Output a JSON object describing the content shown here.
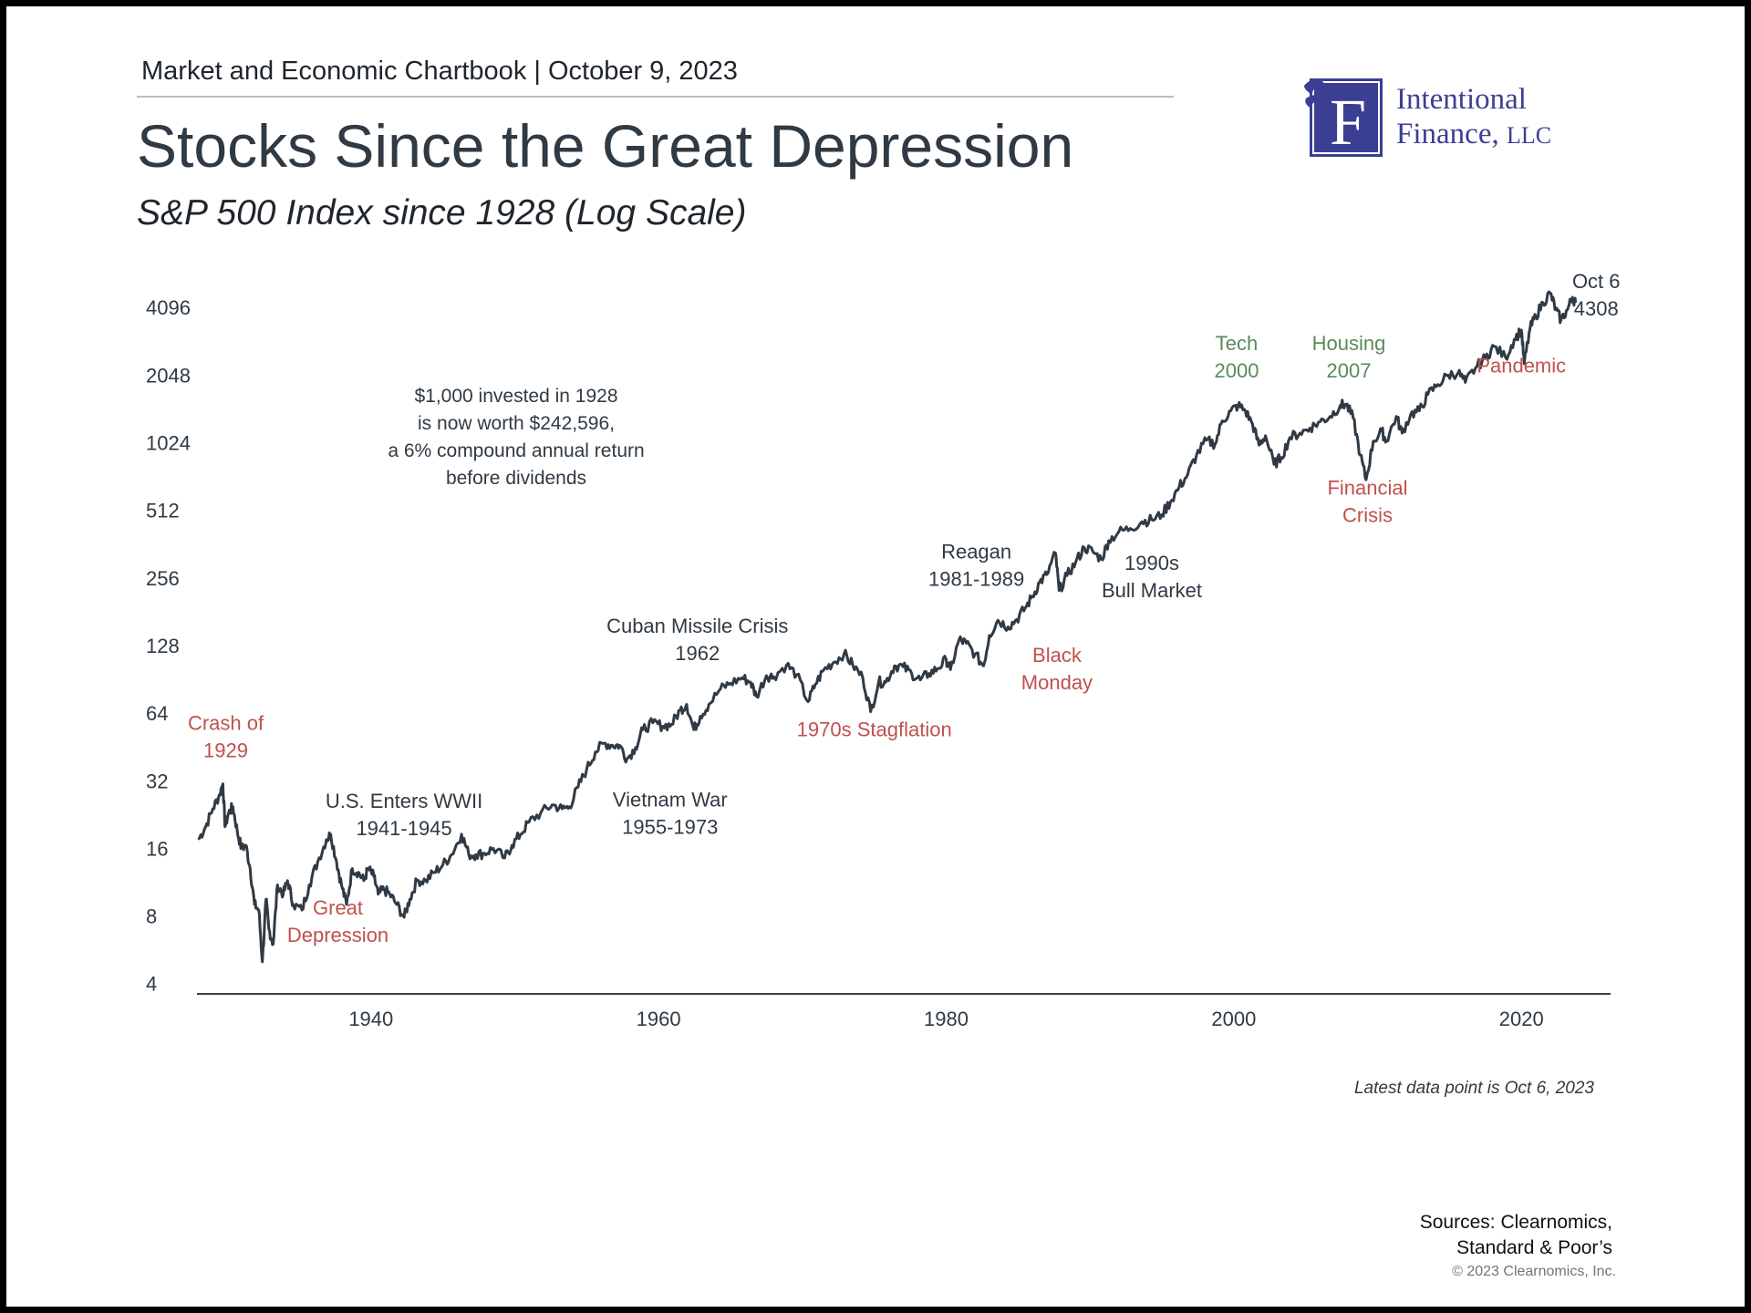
{
  "header": {
    "chartbook": "Market and Economic Chartbook | October 9, 2023",
    "title": "Stocks Since the Great Depression",
    "subtitle": "S&P 500 Index since 1928 (Log Scale)"
  },
  "logo": {
    "letter": "F",
    "line1": "Intentional",
    "line2": "Finance,",
    "line2_suffix": "LLC",
    "color": "#3b3f94"
  },
  "colors": {
    "line": "#2f3a44",
    "crisis_label": "#c0504d",
    "boom_label": "#5a8a5a",
    "event_label": "#2f3a44"
  },
  "chart_data": {
    "type": "line",
    "title": "Stocks Since the Great Depression",
    "subtitle": "S&P 500 Index since 1928 (Log Scale)",
    "xlabel": "",
    "ylabel": "",
    "y_scale": "log2",
    "ylim": [
      3.6,
      5800
    ],
    "xlim": [
      1927.9,
      2026.2
    ],
    "y_ticks": [
      4,
      8,
      16,
      32,
      64,
      128,
      256,
      512,
      1024,
      2048,
      4096
    ],
    "x_ticks": [
      1940,
      1960,
      1980,
      2000,
      2020
    ],
    "grid": false,
    "legend": "none",
    "series": [
      {
        "values": [
          [
            1928.0,
            17.5
          ],
          [
            1928.5,
            20
          ],
          [
            1929.0,
            24
          ],
          [
            1929.5,
            28
          ],
          [
            1929.7,
            31
          ],
          [
            1929.85,
            20
          ],
          [
            1930.1,
            23
          ],
          [
            1930.4,
            24.5
          ],
          [
            1930.7,
            19
          ],
          [
            1931.0,
            16
          ],
          [
            1931.3,
            16.5
          ],
          [
            1931.6,
            13
          ],
          [
            1931.9,
            9
          ],
          [
            1932.2,
            8.5
          ],
          [
            1932.45,
            5
          ],
          [
            1932.7,
            9.5
          ],
          [
            1932.9,
            7
          ],
          [
            1933.2,
            6
          ],
          [
            1933.5,
            11
          ],
          [
            1933.9,
            10
          ],
          [
            1934.2,
            11.5
          ],
          [
            1934.6,
            9
          ],
          [
            1935.2,
            8.5
          ],
          [
            1935.7,
            11
          ],
          [
            1936.3,
            14
          ],
          [
            1936.9,
            17.5
          ],
          [
            1937.2,
            18.5
          ],
          [
            1937.6,
            14
          ],
          [
            1937.95,
            11
          ],
          [
            1938.3,
            9
          ],
          [
            1938.7,
            13
          ],
          [
            1939.1,
            12.5
          ],
          [
            1939.5,
            11.5
          ],
          [
            1939.8,
            13
          ],
          [
            1940.2,
            12
          ],
          [
            1940.5,
            10
          ],
          [
            1940.9,
            10.5
          ],
          [
            1941.3,
            10
          ],
          [
            1941.8,
            9
          ],
          [
            1942.3,
            7.9
          ],
          [
            1942.7,
            9.5
          ],
          [
            1943.2,
            11.5
          ],
          [
            1943.8,
            11.5
          ],
          [
            1944.4,
            12.5
          ],
          [
            1945.0,
            13.5
          ],
          [
            1945.6,
            15
          ],
          [
            1946.3,
            18.5
          ],
          [
            1946.8,
            15
          ],
          [
            1947.3,
            15
          ],
          [
            1947.9,
            15.2
          ],
          [
            1948.5,
            16
          ],
          [
            1949.3,
            14.5
          ],
          [
            1949.8,
            16.5
          ],
          [
            1950.4,
            18.5
          ],
          [
            1951.0,
            21
          ],
          [
            1951.8,
            23
          ],
          [
            1952.6,
            25
          ],
          [
            1953.3,
            24
          ],
          [
            1953.8,
            24.5
          ],
          [
            1954.4,
            30
          ],
          [
            1955.0,
            36
          ],
          [
            1955.6,
            43
          ],
          [
            1956.2,
            47
          ],
          [
            1956.8,
            46
          ],
          [
            1957.3,
            46
          ],
          [
            1957.8,
            40
          ],
          [
            1958.4,
            45
          ],
          [
            1958.9,
            54
          ],
          [
            1959.6,
            58
          ],
          [
            1960.3,
            56
          ],
          [
            1960.9,
            57
          ],
          [
            1961.5,
            66
          ],
          [
            1961.95,
            70
          ],
          [
            1962.45,
            54
          ],
          [
            1962.9,
            62
          ],
          [
            1963.5,
            70
          ],
          [
            1964.3,
            82
          ],
          [
            1965.0,
            87
          ],
          [
            1965.8,
            92
          ],
          [
            1966.4,
            88
          ],
          [
            1966.8,
            76
          ],
          [
            1967.5,
            94
          ],
          [
            1968.0,
            93
          ],
          [
            1968.9,
            105
          ],
          [
            1969.6,
            95
          ],
          [
            1970.4,
            72
          ],
          [
            1970.9,
            86
          ],
          [
            1971.5,
            100
          ],
          [
            1972.2,
            108
          ],
          [
            1972.9,
            118
          ],
          [
            1973.5,
            105
          ],
          [
            1974.2,
            92
          ],
          [
            1974.75,
            65
          ],
          [
            1975.3,
            88
          ],
          [
            1975.8,
            88
          ],
          [
            1976.4,
            104
          ],
          [
            1977.0,
            103
          ],
          [
            1977.6,
            96
          ],
          [
            1978.2,
            90
          ],
          [
            1978.8,
            96
          ],
          [
            1979.4,
            101
          ],
          [
            1980.0,
            111
          ],
          [
            1980.3,
            100
          ],
          [
            1980.9,
            136
          ],
          [
            1981.4,
            131
          ],
          [
            1982.0,
            117
          ],
          [
            1982.6,
            104
          ],
          [
            1983.0,
            142
          ],
          [
            1983.6,
            166
          ],
          [
            1984.3,
            155
          ],
          [
            1984.9,
            167
          ],
          [
            1985.5,
            188
          ],
          [
            1986.0,
            212
          ],
          [
            1986.5,
            245
          ],
          [
            1987.0,
            265
          ],
          [
            1987.6,
            330
          ],
          [
            1987.85,
            225
          ],
          [
            1988.4,
            262
          ],
          [
            1989.0,
            300
          ],
          [
            1989.6,
            350
          ],
          [
            1990.2,
            335
          ],
          [
            1990.8,
            310
          ],
          [
            1991.3,
            375
          ],
          [
            1992.0,
            410
          ],
          [
            1992.8,
            425
          ],
          [
            1993.6,
            455
          ],
          [
            1994.3,
            465
          ],
          [
            1995.0,
            490
          ],
          [
            1995.6,
            560
          ],
          [
            1996.2,
            650
          ],
          [
            1996.8,
            740
          ],
          [
            1997.4,
            900
          ],
          [
            1998.1,
            1050
          ],
          [
            1998.7,
            1010
          ],
          [
            1999.2,
            1280
          ],
          [
            1999.8,
            1420
          ],
          [
            2000.3,
            1500
          ],
          [
            2000.8,
            1420
          ],
          [
            2001.3,
            1240
          ],
          [
            2001.75,
            1000
          ],
          [
            2002.2,
            1100
          ],
          [
            2002.8,
            820
          ],
          [
            2003.3,
            880
          ],
          [
            2003.9,
            1080
          ],
          [
            2004.6,
            1130
          ],
          [
            2005.3,
            1190
          ],
          [
            2006.0,
            1270
          ],
          [
            2006.7,
            1340
          ],
          [
            2007.4,
            1500
          ],
          [
            2007.8,
            1520
          ],
          [
            2008.3,
            1320
          ],
          [
            2008.8,
            900
          ],
          [
            2009.2,
            700
          ],
          [
            2009.7,
            1040
          ],
          [
            2010.3,
            1150
          ],
          [
            2010.6,
            1040
          ],
          [
            2011.3,
            1340
          ],
          [
            2011.7,
            1130
          ],
          [
            2012.3,
            1370
          ],
          [
            2012.9,
            1420
          ],
          [
            2013.5,
            1680
          ],
          [
            2014.2,
            1860
          ],
          [
            2014.9,
            2050
          ],
          [
            2015.6,
            2100
          ],
          [
            2016.1,
            1900
          ],
          [
            2016.8,
            2200
          ],
          [
            2017.5,
            2450
          ],
          [
            2018.1,
            2750
          ],
          [
            2018.9,
            2450
          ],
          [
            2019.5,
            2950
          ],
          [
            2020.0,
            3250
          ],
          [
            2020.2,
            2300
          ],
          [
            2020.6,
            3300
          ],
          [
            2021.0,
            3750
          ],
          [
            2021.5,
            4300
          ],
          [
            2022.0,
            4750
          ],
          [
            2022.4,
            4000
          ],
          [
            2022.75,
            3600
          ],
          [
            2023.2,
            4000
          ],
          [
            2023.55,
            4550
          ],
          [
            2023.77,
            4308
          ]
        ]
      }
    ],
    "annotations": [
      {
        "lines": [
          "Crash of",
          "1929"
        ],
        "x": 1929.9,
        "y": 54,
        "kind": "crisis"
      },
      {
        "lines": [
          "Great",
          "Depression"
        ],
        "x": 1937.7,
        "y": 8.1,
        "kind": "crisis"
      },
      {
        "lines": [
          "U.S. Enters WWII",
          "1941-1945"
        ],
        "x": 1942.3,
        "y": 24.2,
        "kind": "event"
      },
      {
        "lines": [
          "Cuban Missile Crisis",
          "1962"
        ],
        "x": 1962.7,
        "y": 146,
        "kind": "event"
      },
      {
        "lines": [
          "Vietnam War",
          "1955-1973"
        ],
        "x": 1960.8,
        "y": 24.6,
        "kind": "event"
      },
      {
        "lines": [
          "1970s Stagflation"
        ],
        "x": 1975.0,
        "y": 50.5,
        "kind": "crisis"
      },
      {
        "lines": [
          "Reagan",
          "1981-1989"
        ],
        "x": 1982.1,
        "y": 312,
        "kind": "event"
      },
      {
        "lines": [
          "Black",
          "Monday"
        ],
        "x": 1987.7,
        "y": 108,
        "kind": "crisis"
      },
      {
        "lines": [
          "1990s",
          "Bull Market"
        ],
        "x": 1994.3,
        "y": 278,
        "kind": "event"
      },
      {
        "lines": [
          "Tech",
          "2000"
        ],
        "x": 2000.2,
        "y": 2650,
        "kind": "boom"
      },
      {
        "lines": [
          "Housing",
          "2007"
        ],
        "x": 2008.0,
        "y": 2650,
        "kind": "boom"
      },
      {
        "lines": [
          "Financial",
          "Crisis"
        ],
        "x": 2009.3,
        "y": 600,
        "kind": "crisis"
      },
      {
        "lines": [
          "Pandemic"
        ],
        "x": 2020.0,
        "y": 2100,
        "kind": "crisis"
      },
      {
        "lines": [
          "Oct 6",
          "4308"
        ],
        "x": 2025.2,
        "y": 5000,
        "kind": "event"
      }
    ],
    "callout": [
      "$1,000 invested in 1928",
      "is now worth $242,596,",
      "a 6% compound annual return",
      "before dividends"
    ]
  },
  "footer": {
    "note": "Latest data point is Oct 6, 2023",
    "sources_line1": "Sources: Clearnomics,",
    "sources_line2": "Standard & Poor’s",
    "copyright": "© 2023 Clearnomics, Inc."
  }
}
